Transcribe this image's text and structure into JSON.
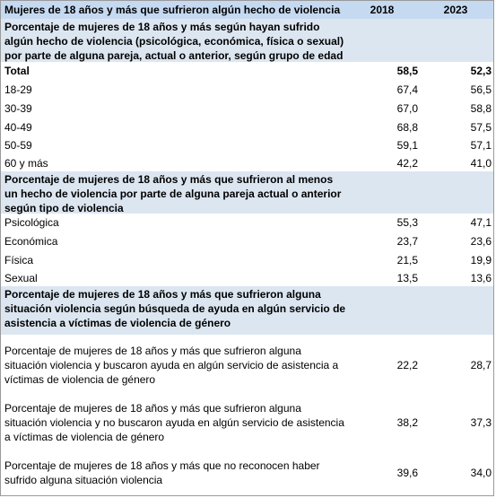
{
  "header": {
    "title": "Mujeres de 18 años y más que sufrieron algún hecho de violencia",
    "years": [
      "2018",
      "2023"
    ]
  },
  "sections": [
    {
      "title": "Porcentaje de mujeres de 18 años y más según hayan sufrido algún hecho de violencia (psicológica, económica, física o sexual) por parte de alguna pareja, actual o anterior, según grupo de edad",
      "rows": [
        {
          "label": "Total",
          "values": [
            "58,5",
            "52,3"
          ]
        },
        {
          "label": "18-29",
          "values": [
            "67,4",
            "56,5"
          ]
        },
        {
          "label": "30-39",
          "values": [
            "67,0",
            "58,8"
          ]
        },
        {
          "label": "40-49",
          "values": [
            "68,8",
            "57,5"
          ]
        },
        {
          "label": "50-59",
          "values": [
            "59,1",
            "57,1"
          ]
        },
        {
          "label": "60 y más",
          "values": [
            "42,2",
            "41,0"
          ]
        }
      ]
    },
    {
      "title": "Porcentaje de mujeres de 18 años y más que sufrieron al menos un hecho de violencia por parte de alguna pareja actual o anterior según tipo de violencia",
      "rows": [
        {
          "label": "Psicológica",
          "values": [
            "55,3",
            "47,1"
          ]
        },
        {
          "label": "Económica",
          "values": [
            "23,7",
            "23,6"
          ]
        },
        {
          "label": "Física",
          "values": [
            "21,5",
            "19,9"
          ]
        },
        {
          "label": "Sexual",
          "values": [
            "13,5",
            "13,6"
          ]
        }
      ]
    },
    {
      "title": "Porcentaje de mujeres de 18 años y más que sufrieron alguna situación violencia según búsqueda de ayuda en algún servicio de asistencia a víctimas de violencia de género",
      "rows": [
        {
          "label": "Porcentaje de mujeres de 18 años y más que sufrieron alguna situación violencia y buscaron ayuda en algún servicio de asistencia a víctimas de violencia de género",
          "values": [
            "22,2",
            "28,7"
          ]
        },
        {
          "label": "Porcentaje de mujeres de 18 años y más que sufrieron alguna situación violencia y no buscaron ayuda en algún servicio de asistencia a víctimas de violencia de género",
          "values": [
            "38,2",
            "37,3"
          ]
        },
        {
          "label": "Porcentaje de mujeres de 18 años y más que no reconocen haber sufrido alguna situación violencia",
          "values": [
            "39,6",
            "34,0"
          ]
        }
      ]
    }
  ]
}
